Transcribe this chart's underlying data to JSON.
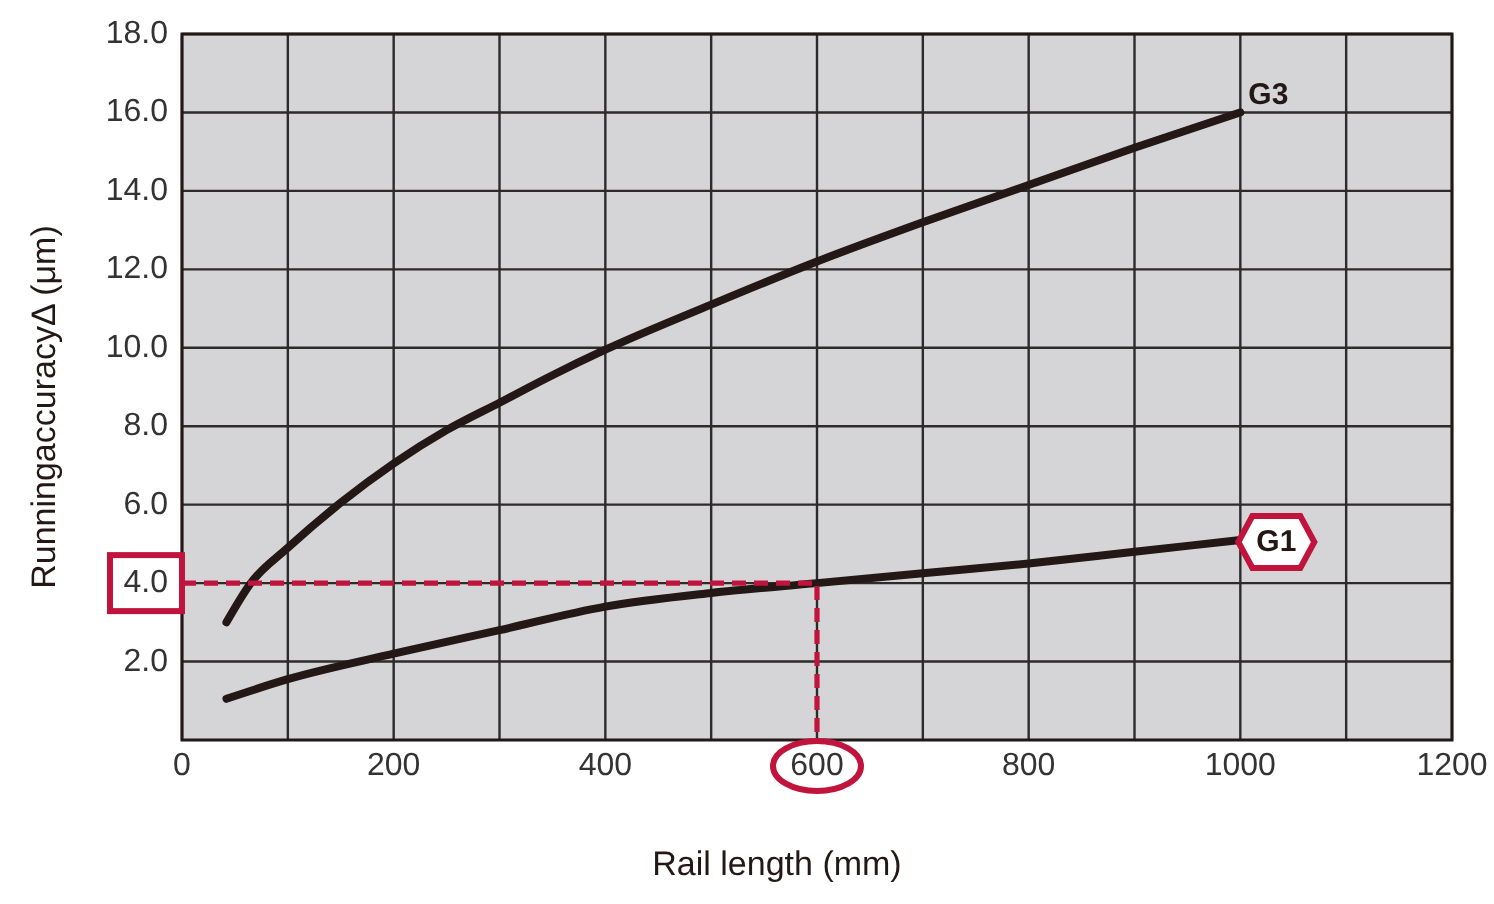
{
  "chart_data": {
    "type": "line",
    "xlabel": "Rail length (mm)",
    "ylabel": "RunningaccuracyΔ (μm)",
    "xlim": [
      0,
      1200
    ],
    "ylim": [
      0,
      18
    ],
    "xticks": [
      0,
      {
        "value": 100,
        "label": null
      },
      200,
      {
        "value": 300,
        "label": null
      },
      400,
      {
        "value": 500,
        "label": null
      },
      600,
      {
        "value": 700,
        "label": null
      },
      800,
      {
        "value": 900,
        "label": null
      },
      1000,
      {
        "value": 1100,
        "label": null
      },
      1200
    ],
    "yticks": [
      {
        "value": 2,
        "label": "2.0"
      },
      {
        "value": 4,
        "label": "4.0"
      },
      {
        "value": 6,
        "label": "6.0"
      },
      {
        "value": 8,
        "label": "8.0"
      },
      {
        "value": 10,
        "label": "10.0"
      },
      {
        "value": 12,
        "label": "12.0"
      },
      {
        "value": 14,
        "label": "14.0"
      },
      {
        "value": 16,
        "label": "16.0"
      },
      {
        "value": 18,
        "label": "18.0"
      }
    ],
    "grid": true,
    "series": [
      {
        "name": "G3",
        "color": "#231815",
        "x": [
          42,
          65,
          100,
          150,
          200,
          250,
          300,
          350,
          400,
          500,
          600,
          700,
          800,
          900,
          1000
        ],
        "values": [
          3.0,
          4.0,
          4.9,
          6.05,
          7.05,
          7.9,
          8.6,
          9.3,
          9.95,
          11.1,
          12.2,
          13.2,
          14.15,
          15.1,
          16.0
        ]
      },
      {
        "name": "G1",
        "color": "#231815",
        "x": [
          42,
          100,
          200,
          300,
          400,
          500,
          600,
          700,
          800,
          900,
          1000
        ],
        "values": [
          1.05,
          1.55,
          2.2,
          2.8,
          3.4,
          3.75,
          4.0,
          4.25,
          4.5,
          4.8,
          5.1
        ]
      },
      {
        "color": "#c0143c",
        "line_style": "dashed",
        "x": [
          0,
          600,
          600
        ],
        "values": [
          4.0,
          4.0,
          0
        ]
      }
    ]
  }
}
